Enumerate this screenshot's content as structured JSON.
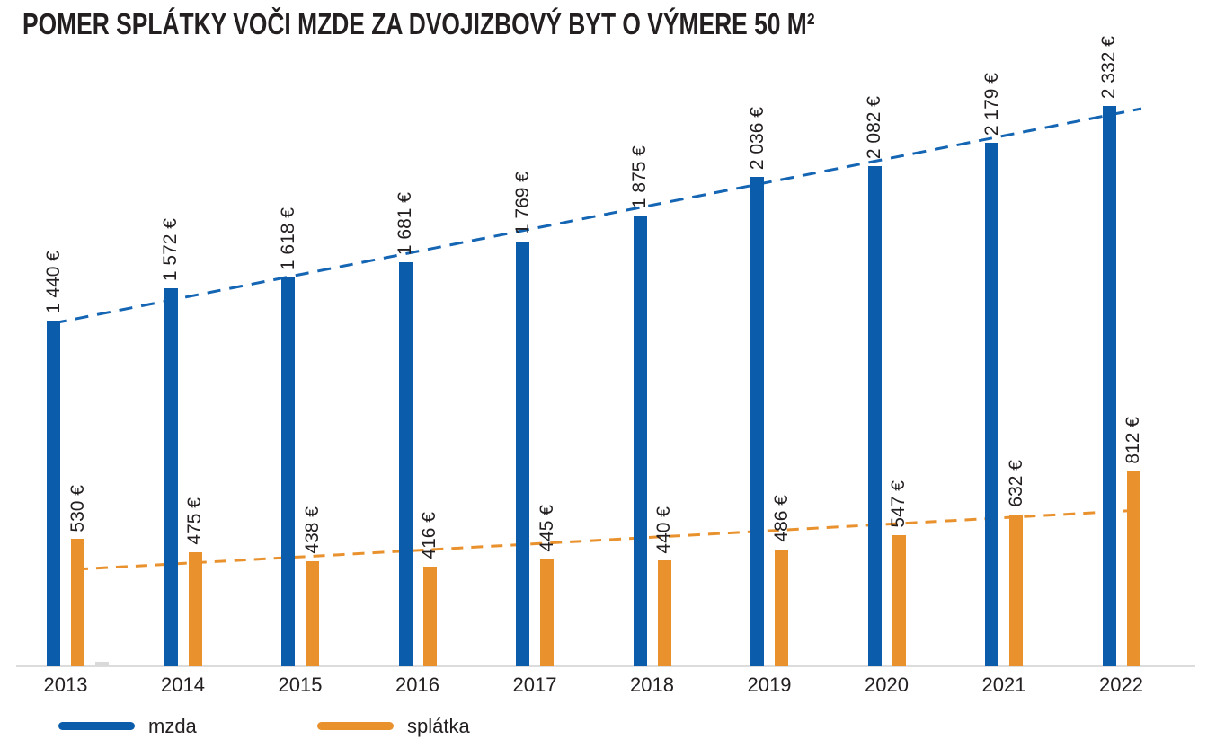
{
  "title": "POMER SPLÁTKY VOČI MZDE ZA DVOJIZBOVÝ BYT O VÝMERE 50 M²",
  "colors": {
    "mzda": "#0B5CAB",
    "splatka": "#E8912D",
    "mzda_trend": "#1465B3",
    "splatka_trend": "#E8912D",
    "axis": "#DCDCDC",
    "stub": "#D9D9D9",
    "text": "#231F20"
  },
  "legend": [
    {
      "label": "mzda",
      "color": "#0B5CAB"
    },
    {
      "label": "splátka",
      "color": "#E8912D"
    }
  ],
  "chart_data": {
    "type": "bar",
    "title": "POMER SPLÁTKY VOČI MZDE ZA DVOJIZBOVÝ BYT O VÝMERE 50 M²",
    "categories": [
      "2013",
      "2014",
      "2015",
      "2016",
      "2017",
      "2018",
      "2019",
      "2020",
      "2021",
      "2022"
    ],
    "series": [
      {
        "name": "mzda",
        "values": [
          1440,
          1572,
          1618,
          1681,
          1769,
          1875,
          2036,
          2082,
          2179,
          2332
        ],
        "labels": [
          "1 440 €",
          "1 572 €",
          "1 618 €",
          "1 681 €",
          "1 769 €",
          "1 875 €",
          "2 036 €",
          "2 082 €",
          "2 179 €",
          "2 332 €"
        ]
      },
      {
        "name": "splátka",
        "values": [
          530,
          475,
          438,
          416,
          445,
          440,
          486,
          547,
          632,
          812
        ],
        "labels": [
          "530 €",
          "475 €",
          "438 €",
          "416 €",
          "445 €",
          "440 €",
          "486 €",
          "547 €",
          "632 €",
          "812 €"
        ]
      }
    ],
    "value_suffix": "€",
    "trendlines": [
      "mzda linear (dashed)",
      "splátka linear (dashed)"
    ],
    "legend_position": "bottom",
    "grid": false,
    "ylim": [
      0,
      2780
    ]
  }
}
